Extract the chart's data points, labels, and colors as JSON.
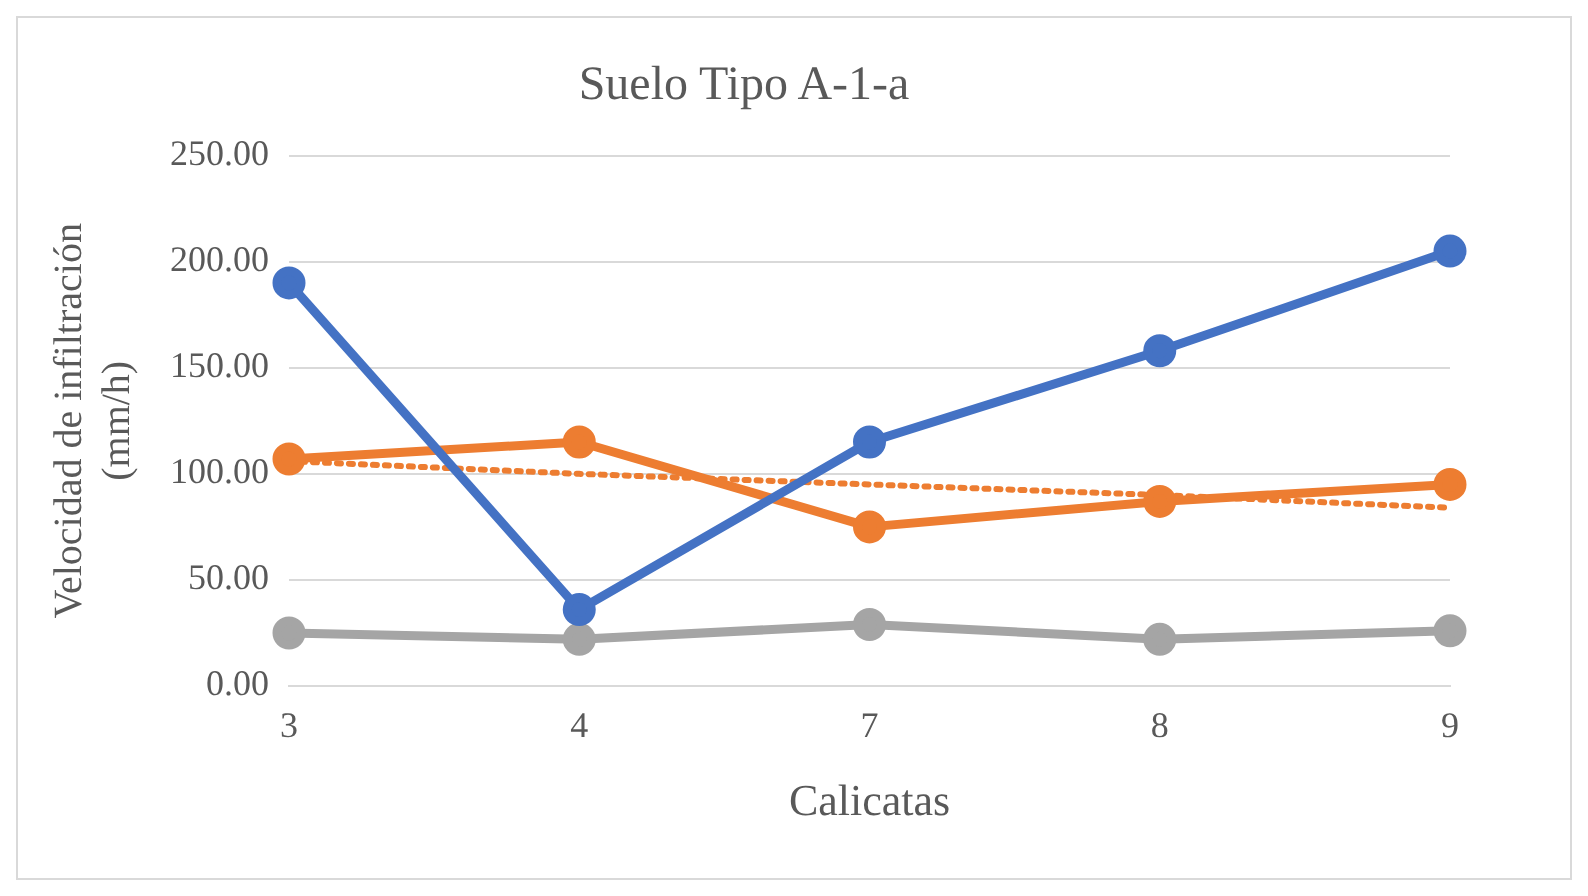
{
  "chart_data": {
    "type": "line",
    "title": "Suelo Tipo A-1-a",
    "xlabel": "Calicatas",
    "ylabel": "Velocidad de infiltración (mm/h)",
    "categories": [
      "3",
      "4",
      "7",
      "8",
      "9"
    ],
    "ylim": [
      0,
      250
    ],
    "yticks": [
      {
        "value": 0,
        "label": "0.00"
      },
      {
        "value": 50,
        "label": "50.00"
      },
      {
        "value": 100,
        "label": "100.00"
      },
      {
        "value": 150,
        "label": "150.00"
      },
      {
        "value": 200,
        "label": "200.00"
      },
      {
        "value": 250,
        "label": "250.00"
      }
    ],
    "grid": "y",
    "legend": false,
    "marker": "circle",
    "line_style": "solid",
    "series": [
      {
        "color": "#4472c4",
        "values": [
          190,
          36,
          115,
          158,
          205
        ]
      },
      {
        "color": "#ed7d31",
        "values": [
          107,
          115,
          75,
          87,
          95
        ]
      },
      {
        "color": "#a5a5a5",
        "values": [
          25,
          22,
          29,
          22,
          26
        ]
      },
      {
        "type": "line",
        "color": "#ed7d31",
        "values": [
          106,
          100,
          95,
          90,
          84
        ],
        "marker": "none",
        "line_style": "dotted"
      }
    ]
  }
}
